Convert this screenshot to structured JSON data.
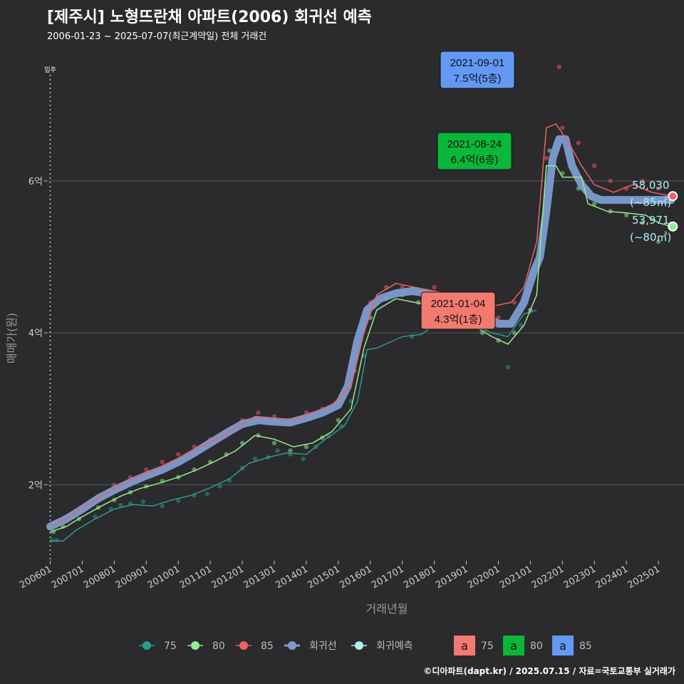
{
  "title": "[제주시] 노형뜨란채 아파트(2006) 회귀선 예측",
  "subtitle": "2006-01-23 ~ 2025-07-07(최근계약일) 전체 거래건",
  "caption": "©디아파트(dapt.kr) / 2025.07.15 / 자료=국토교통부 실거래가",
  "chart_data": {
    "type": "scatter",
    "title": "[제주시] 노형뜨란채 아파트(2006) 회귀선 예측",
    "xlabel": "거래년월",
    "ylabel": "매매가(원)",
    "xlim": [
      2005.9,
      2025.8
    ],
    "ylim": [
      1.0,
      7.8
    ],
    "x_ticks": [
      {
        "v": 2006.0,
        "label": "200601"
      },
      {
        "v": 2007.0,
        "label": "200701"
      },
      {
        "v": 2008.0,
        "label": "200801"
      },
      {
        "v": 2009.0,
        "label": "200901"
      },
      {
        "v": 2010.0,
        "label": "201001"
      },
      {
        "v": 2011.0,
        "label": "201101"
      },
      {
        "v": 2012.0,
        "label": "201201"
      },
      {
        "v": 2013.0,
        "label": "201301"
      },
      {
        "v": 2014.0,
        "label": "201401"
      },
      {
        "v": 2015.0,
        "label": "201501"
      },
      {
        "v": 2016.0,
        "label": "201601"
      },
      {
        "v": 2017.0,
        "label": "201701"
      },
      {
        "v": 2018.0,
        "label": "201801"
      },
      {
        "v": 2019.0,
        "label": "201901"
      },
      {
        "v": 2020.0,
        "label": "202001"
      },
      {
        "v": 2021.0,
        "label": "202101"
      },
      {
        "v": 2022.0,
        "label": "202201"
      },
      {
        "v": 2023.0,
        "label": "202301"
      },
      {
        "v": 2024.0,
        "label": "202401"
      },
      {
        "v": 2025.0,
        "label": "202501"
      }
    ],
    "y_ticks": [
      {
        "v": 2,
        "label": "2억"
      },
      {
        "v": 4,
        "label": "4억"
      },
      {
        "v": 6,
        "label": "6억"
      }
    ],
    "move_in": {
      "x": 2006.0,
      "label": "입주"
    },
    "colors": {
      "75": "#2a9d8f",
      "80": "#90ee90",
      "85": "#f06060",
      "regression": "#7c9cd0",
      "forecast": "#b0f0f0",
      "grid": "#555555"
    },
    "series": [
      {
        "name": "75",
        "points": [
          [
            2006.05,
            1.27
          ],
          [
            2006.2,
            1.27
          ],
          [
            2007.4,
            1.58
          ],
          [
            2007.9,
            1.68
          ],
          [
            2008.2,
            1.73
          ],
          [
            2008.5,
            1.75
          ],
          [
            2008.9,
            1.78
          ],
          [
            2009.5,
            1.72
          ],
          [
            2010.0,
            1.79
          ],
          [
            2010.5,
            1.86
          ],
          [
            2010.9,
            1.88
          ],
          [
            2011.3,
            1.98
          ],
          [
            2011.6,
            2.06
          ],
          [
            2012.0,
            2.22
          ],
          [
            2012.4,
            2.34
          ],
          [
            2012.8,
            2.36
          ],
          [
            2013.1,
            2.45
          ],
          [
            2013.5,
            2.4
          ],
          [
            2013.9,
            2.34
          ],
          [
            2014.3,
            2.5
          ],
          [
            2014.7,
            2.64
          ],
          [
            2015.1,
            2.77
          ],
          [
            2015.4,
            3.1
          ],
          [
            2015.8,
            3.7
          ],
          [
            2017.3,
            3.95
          ],
          [
            2017.8,
            4.08
          ],
          [
            2018.3,
            4.12
          ],
          [
            2019.2,
            4.08
          ],
          [
            2019.6,
            4.05
          ],
          [
            2020.3,
            3.55
          ],
          [
            2020.7,
            4.1
          ],
          [
            2021.0,
            4.28
          ]
        ],
        "line": [
          [
            2006.0,
            1.26
          ],
          [
            2006.4,
            1.26
          ],
          [
            2006.8,
            1.4
          ],
          [
            2007.4,
            1.55
          ],
          [
            2008.0,
            1.68
          ],
          [
            2008.6,
            1.74
          ],
          [
            2009.2,
            1.72
          ],
          [
            2009.8,
            1.8
          ],
          [
            2010.4,
            1.86
          ],
          [
            2011.0,
            1.96
          ],
          [
            2011.6,
            2.08
          ],
          [
            2012.2,
            2.28
          ],
          [
            2012.8,
            2.36
          ],
          [
            2013.4,
            2.42
          ],
          [
            2014.0,
            2.4
          ],
          [
            2014.6,
            2.6
          ],
          [
            2015.2,
            2.78
          ],
          [
            2015.6,
            3.1
          ],
          [
            2015.9,
            3.78
          ],
          [
            2016.2,
            3.8
          ],
          [
            2017.0,
            3.95
          ],
          [
            2017.6,
            3.98
          ],
          [
            2018.0,
            4.1
          ],
          [
            2018.6,
            4.12
          ],
          [
            2019.2,
            4.1
          ],
          [
            2019.8,
            4.0
          ],
          [
            2020.3,
            3.95
          ],
          [
            2020.8,
            4.25
          ],
          [
            2021.2,
            4.3
          ]
        ]
      },
      {
        "name": "80",
        "points": [
          [
            2006.1,
            1.38
          ],
          [
            2006.4,
            1.45
          ],
          [
            2006.9,
            1.55
          ],
          [
            2007.5,
            1.7
          ],
          [
            2008.0,
            1.8
          ],
          [
            2008.5,
            1.9
          ],
          [
            2009.0,
            1.98
          ],
          [
            2009.5,
            2.05
          ],
          [
            2010.0,
            2.1
          ],
          [
            2010.5,
            2.2
          ],
          [
            2011.0,
            2.3
          ],
          [
            2011.5,
            2.4
          ],
          [
            2012.0,
            2.55
          ],
          [
            2012.5,
            2.65
          ],
          [
            2013.0,
            2.55
          ],
          [
            2013.5,
            2.45
          ],
          [
            2014.0,
            2.5
          ],
          [
            2014.5,
            2.62
          ],
          [
            2015.0,
            2.85
          ],
          [
            2015.5,
            3.5
          ],
          [
            2016.0,
            4.2
          ],
          [
            2016.5,
            4.45
          ],
          [
            2017.0,
            4.5
          ],
          [
            2017.5,
            4.4
          ],
          [
            2018.0,
            4.35
          ],
          [
            2018.5,
            4.2
          ],
          [
            2019.0,
            4.1
          ],
          [
            2019.5,
            4.0
          ],
          [
            2020.0,
            3.9
          ],
          [
            2020.5,
            4.0
          ],
          [
            2021.0,
            4.3
          ],
          [
            2021.6,
            6.4
          ],
          [
            2022.0,
            6.1
          ],
          [
            2022.5,
            5.9
          ],
          [
            2023.0,
            5.7
          ],
          [
            2023.5,
            5.6
          ],
          [
            2024.0,
            5.55
          ],
          [
            2024.5,
            5.45
          ],
          [
            2025.0,
            5.2
          ]
        ],
        "line": [
          [
            2006.0,
            1.38
          ],
          [
            2006.5,
            1.45
          ],
          [
            2007.0,
            1.58
          ],
          [
            2007.6,
            1.72
          ],
          [
            2008.2,
            1.85
          ],
          [
            2008.8,
            1.95
          ],
          [
            2009.4,
            2.02
          ],
          [
            2010.0,
            2.1
          ],
          [
            2010.6,
            2.2
          ],
          [
            2011.2,
            2.32
          ],
          [
            2011.8,
            2.45
          ],
          [
            2012.4,
            2.65
          ],
          [
            2013.0,
            2.6
          ],
          [
            2013.6,
            2.5
          ],
          [
            2014.2,
            2.55
          ],
          [
            2014.8,
            2.7
          ],
          [
            2015.4,
            3.0
          ],
          [
            2015.8,
            3.8
          ],
          [
            2016.2,
            4.3
          ],
          [
            2016.8,
            4.45
          ],
          [
            2017.4,
            4.4
          ],
          [
            2018.0,
            4.35
          ],
          [
            2018.6,
            4.2
          ],
          [
            2019.2,
            4.1
          ],
          [
            2019.8,
            3.95
          ],
          [
            2020.3,
            3.85
          ],
          [
            2020.8,
            4.1
          ],
          [
            2021.2,
            4.5
          ],
          [
            2021.5,
            6.2
          ],
          [
            2021.8,
            6.2
          ],
          [
            2022.0,
            6.05
          ],
          [
            2022.6,
            6.05
          ],
          [
            2022.8,
            5.7
          ],
          [
            2023.4,
            5.6
          ],
          [
            2024.0,
            5.58
          ],
          [
            2024.6,
            5.55
          ],
          [
            2025.0,
            5.45
          ],
          [
            2025.4,
            5.4
          ]
        ]
      },
      {
        "name": "85",
        "points": [
          [
            2006.2,
            1.5
          ],
          [
            2006.6,
            1.6
          ],
          [
            2007.0,
            1.7
          ],
          [
            2007.5,
            1.85
          ],
          [
            2008.0,
            2.0
          ],
          [
            2008.5,
            2.1
          ],
          [
            2009.0,
            2.2
          ],
          [
            2009.5,
            2.3
          ],
          [
            2010.0,
            2.4
          ],
          [
            2010.5,
            2.5
          ],
          [
            2011.0,
            2.6
          ],
          [
            2011.5,
            2.7
          ],
          [
            2012.0,
            2.85
          ],
          [
            2012.5,
            2.95
          ],
          [
            2013.0,
            2.9
          ],
          [
            2013.5,
            2.85
          ],
          [
            2014.0,
            2.95
          ],
          [
            2014.5,
            3.0
          ],
          [
            2015.0,
            3.1
          ],
          [
            2015.5,
            3.8
          ],
          [
            2016.0,
            4.4
          ],
          [
            2016.5,
            4.6
          ],
          [
            2017.0,
            4.6
          ],
          [
            2017.5,
            4.55
          ],
          [
            2018.0,
            4.6
          ],
          [
            2018.5,
            4.5
          ],
          [
            2019.0,
            4.45
          ],
          [
            2019.5,
            4.3
          ],
          [
            2020.0,
            4.2
          ],
          [
            2020.5,
            4.4
          ],
          [
            2021.0,
            4.3
          ],
          [
            2021.5,
            6.3
          ],
          [
            2021.9,
            7.5
          ],
          [
            2022.0,
            6.7
          ],
          [
            2022.5,
            6.5
          ],
          [
            2023.0,
            6.2
          ],
          [
            2023.5,
            6.0
          ],
          [
            2024.0,
            5.9
          ],
          [
            2024.5,
            6.0
          ],
          [
            2025.0,
            5.9
          ]
        ],
        "line": [
          [
            2006.0,
            1.46
          ],
          [
            2006.5,
            1.55
          ],
          [
            2007.0,
            1.7
          ],
          [
            2007.6,
            1.85
          ],
          [
            2008.2,
            2.0
          ],
          [
            2008.8,
            2.12
          ],
          [
            2009.4,
            2.22
          ],
          [
            2010.0,
            2.35
          ],
          [
            2010.6,
            2.48
          ],
          [
            2011.2,
            2.6
          ],
          [
            2011.8,
            2.75
          ],
          [
            2012.4,
            2.9
          ],
          [
            2013.0,
            2.88
          ],
          [
            2013.6,
            2.85
          ],
          [
            2014.2,
            2.95
          ],
          [
            2014.8,
            3.05
          ],
          [
            2015.4,
            3.3
          ],
          [
            2015.8,
            4.0
          ],
          [
            2016.2,
            4.5
          ],
          [
            2016.8,
            4.65
          ],
          [
            2017.4,
            4.6
          ],
          [
            2018.0,
            4.55
          ],
          [
            2018.6,
            4.5
          ],
          [
            2019.2,
            4.45
          ],
          [
            2019.8,
            4.35
          ],
          [
            2020.4,
            4.4
          ],
          [
            2020.8,
            4.6
          ],
          [
            2021.2,
            5.2
          ],
          [
            2021.5,
            6.7
          ],
          [
            2021.8,
            6.75
          ],
          [
            2022.2,
            6.5
          ],
          [
            2022.6,
            6.2
          ],
          [
            2023.0,
            5.95
          ],
          [
            2023.6,
            5.85
          ],
          [
            2024.2,
            5.95
          ],
          [
            2024.8,
            5.85
          ],
          [
            2025.4,
            5.8
          ]
        ]
      }
    ],
    "regression": {
      "name": "회귀선",
      "points": [
        [
          2006.0,
          1.45
        ],
        [
          2006.5,
          1.55
        ],
        [
          2007.0,
          1.68
        ],
        [
          2007.5,
          1.82
        ],
        [
          2008.0,
          1.93
        ],
        [
          2008.5,
          2.03
        ],
        [
          2009.0,
          2.12
        ],
        [
          2009.5,
          2.2
        ],
        [
          2010.0,
          2.3
        ],
        [
          2010.5,
          2.42
        ],
        [
          2011.0,
          2.55
        ],
        [
          2011.5,
          2.68
        ],
        [
          2012.0,
          2.8
        ],
        [
          2012.5,
          2.85
        ],
        [
          2013.0,
          2.83
        ],
        [
          2013.5,
          2.82
        ],
        [
          2014.0,
          2.88
        ],
        [
          2014.5,
          2.95
        ],
        [
          2015.0,
          3.05
        ],
        [
          2015.3,
          3.3
        ],
        [
          2015.6,
          3.9
        ],
        [
          2015.9,
          4.3
        ],
        [
          2016.3,
          4.45
        ],
        [
          2016.8,
          4.52
        ],
        [
          2017.3,
          4.55
        ],
        [
          2017.8,
          4.52
        ],
        [
          2018.2,
          4.47
        ],
        [
          2018.6,
          4.42
        ],
        [
          2019.0,
          4.35
        ],
        [
          2019.5,
          4.25
        ],
        [
          2020.0,
          4.12
        ],
        [
          2020.4,
          4.12
        ],
        [
          2020.8,
          4.4
        ],
        [
          2021.1,
          4.8
        ],
        [
          2021.3,
          5.0
        ],
        [
          2021.5,
          5.6
        ],
        [
          2021.7,
          6.3
        ],
        [
          2021.9,
          6.55
        ],
        [
          2022.1,
          6.55
        ],
        [
          2022.3,
          6.2
        ],
        [
          2022.6,
          5.95
        ],
        [
          2022.9,
          5.8
        ],
        [
          2023.2,
          5.75
        ],
        [
          2023.6,
          5.75
        ],
        [
          2024.0,
          5.75
        ],
        [
          2024.5,
          5.75
        ],
        [
          2025.0,
          5.75
        ],
        [
          2025.4,
          5.75
        ]
      ]
    },
    "labels": [
      {
        "date": "2021-09-01",
        "price": "7.5억(5층)",
        "x": 2021.67,
        "y": 7.5,
        "size": "85",
        "bg": "#6399f5"
      },
      {
        "date": "2021-08-24",
        "price": "6.4억(6층)",
        "x": 2021.64,
        "y": 6.4,
        "size": "80",
        "bg": "#09b83a"
      },
      {
        "date": "2021-01-04",
        "price": "4.3억(1층)",
        "x": 2021.0,
        "y": 4.3,
        "size": "75",
        "bg": "#f37a70"
      }
    ],
    "end_labels": [
      {
        "value": "58,030",
        "area": "(~85㎡)",
        "x": 2025.5,
        "y": 5.8
      },
      {
        "value": "53,971",
        "area": "(~80㎡)",
        "x": 2025.5,
        "y": 5.4
      }
    ]
  },
  "legend": {
    "lines": [
      {
        "label": "75",
        "color": "#2a9d8f"
      },
      {
        "label": "80",
        "color": "#90ee90"
      },
      {
        "label": "85",
        "color": "#f06060"
      },
      {
        "label": "회귀선",
        "color": "#7c9cd0"
      },
      {
        "label": "회귀예측",
        "color": "#b0f0f0"
      }
    ],
    "boxes": [
      {
        "glyph": "a",
        "label": "75",
        "color": "#f37a70"
      },
      {
        "glyph": "a",
        "label": "80",
        "color": "#09b83a"
      },
      {
        "glyph": "a",
        "label": "85",
        "color": "#6399f5"
      }
    ]
  }
}
